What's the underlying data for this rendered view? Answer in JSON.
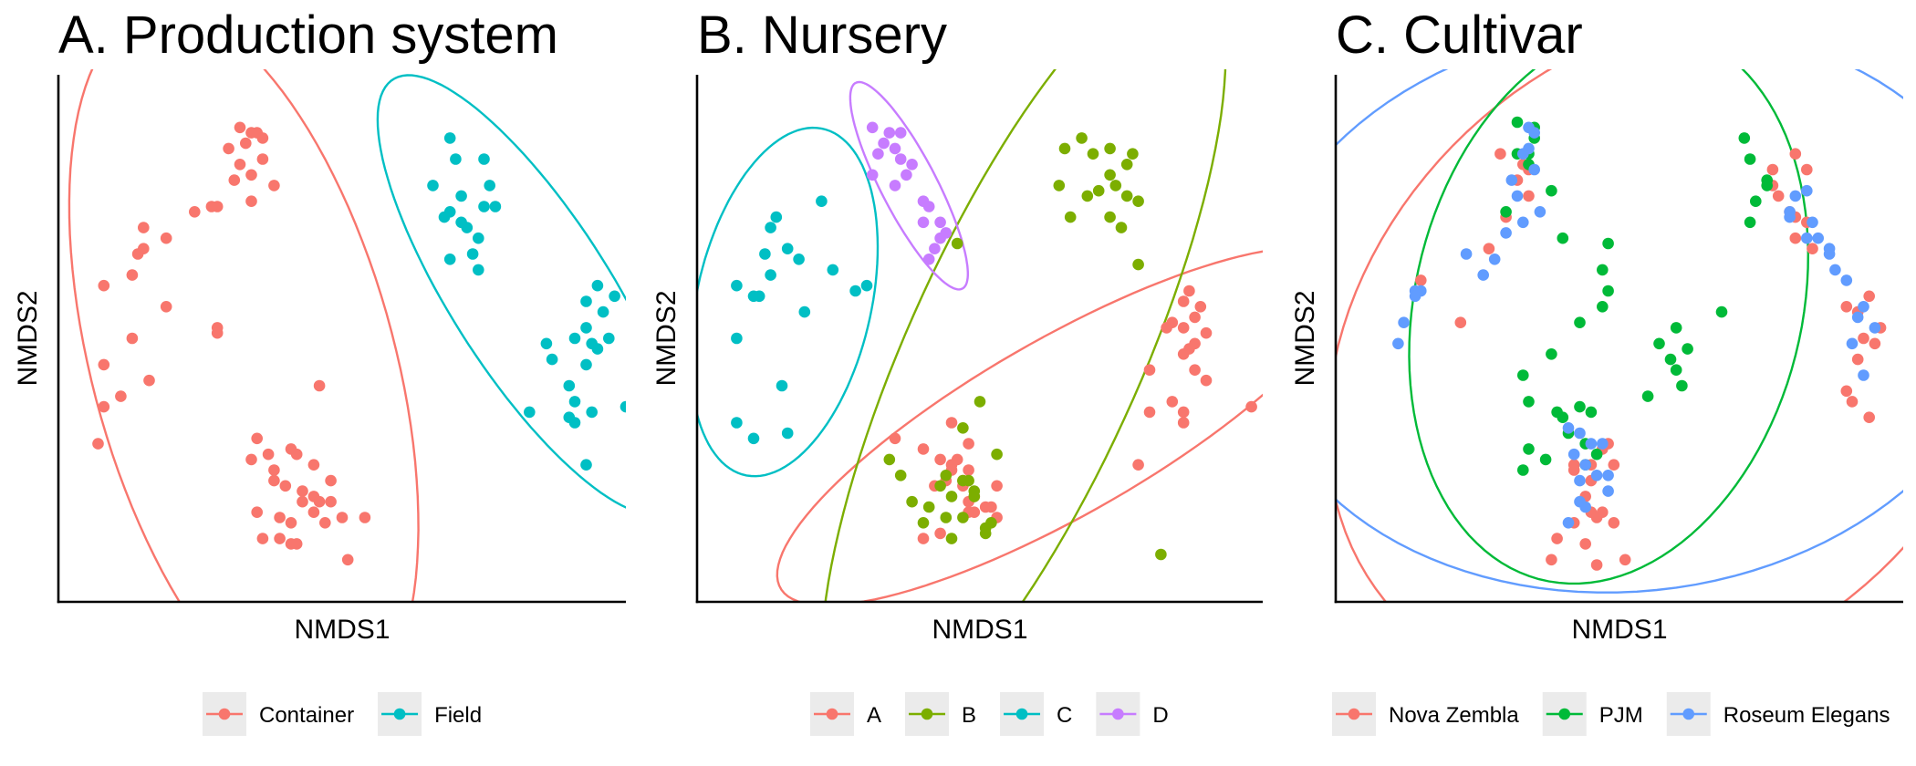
{
  "chart_data": [
    {
      "type": "scatter",
      "title": "A. Production system",
      "xlabel": "NMDS1",
      "ylabel": "NMDS2",
      "xlim": [
        0,
        10
      ],
      "ylim": [
        0,
        10
      ],
      "ellipses": true,
      "legend": "bottom",
      "series": [
        {
          "name": "Container",
          "color": "#F8766D",
          "x": [
            3.2,
            3.5,
            3.4,
            3.6,
            3.3,
            3.0,
            3.2,
            3.6,
            3.4,
            3.8,
            3.1,
            2.8,
            3.4,
            2.4,
            2.7,
            1.5,
            1.9,
            1.5,
            1.4,
            1.3,
            1.9,
            0.8,
            2.8,
            2.8,
            1.3,
            0.8,
            0.8,
            0.7,
            1.1,
            1.6,
            4.6,
            3.5,
            3.7,
            4.1,
            4.2,
            3.4,
            3.8,
            4.5,
            3.8,
            4.0,
            4.8,
            4.3,
            4.5,
            4.6,
            4.3,
            4.8,
            4.5,
            3.5,
            3.9,
            5.0,
            4.7,
            5.4,
            4.1,
            3.6,
            3.9,
            4.2,
            4.1,
            5.1
          ],
          "y": [
            9.0,
            8.9,
            8.9,
            8.8,
            8.7,
            8.6,
            8.3,
            8.4,
            8.1,
            7.9,
            8.0,
            7.5,
            7.6,
            7.4,
            7.5,
            7.1,
            6.9,
            6.7,
            6.6,
            6.2,
            5.6,
            6.0,
            5.2,
            5.1,
            5.0,
            4.5,
            3.7,
            3.0,
            3.9,
            4.2,
            4.1,
            3.1,
            2.8,
            2.9,
            2.8,
            2.7,
            2.5,
            2.6,
            2.3,
            2.2,
            2.3,
            2.1,
            2.0,
            1.9,
            1.9,
            1.9,
            1.7,
            1.7,
            1.6,
            1.6,
            1.5,
            1.6,
            1.5,
            1.2,
            1.2,
            1.1,
            1.1,
            0.8
          ]
        },
        {
          "name": "Field",
          "color": "#00BFC4",
          "x": [
            6.9,
            7.5,
            7.0,
            6.6,
            7.1,
            6.8,
            7.6,
            7.7,
            7.5,
            7.1,
            6.9,
            7.2,
            7.4,
            7.3,
            6.9,
            7.4,
            9.5,
            9.3,
            9.8,
            9.6,
            9.3,
            9.7,
            9.1,
            9.4,
            9.5,
            8.6,
            8.7,
            9.3,
            9.0,
            9.4,
            9.1,
            10.0,
            8.3,
            9.0,
            9.1,
            9.3
          ],
          "y": [
            8.8,
            8.4,
            8.4,
            7.9,
            7.7,
            7.3,
            7.9,
            7.5,
            7.5,
            7.2,
            7.4,
            7.1,
            6.9,
            6.6,
            6.5,
            6.3,
            6.0,
            5.7,
            5.8,
            5.5,
            5.2,
            5.0,
            5.0,
            4.9,
            4.8,
            4.9,
            4.6,
            4.5,
            4.1,
            3.6,
            3.8,
            3.7,
            3.6,
            3.5,
            3.4,
            2.6
          ]
        }
      ]
    },
    {
      "type": "scatter",
      "title": "B. Nursery",
      "xlabel": "NMDS1",
      "ylabel": "NMDS2",
      "xlim": [
        0,
        10
      ],
      "ylim": [
        0,
        10
      ],
      "ellipses": true,
      "legend": "bottom",
      "series": [
        {
          "name": "A",
          "color": "#F8766D",
          "x": [
            8.7,
            8.6,
            8.9,
            8.8,
            8.4,
            8.6,
            8.3,
            9.0,
            8.8,
            8.7,
            8.6,
            8.0,
            8.8,
            9.0,
            8.4,
            8.6,
            9.8,
            8.0,
            8.6,
            7.8,
            4.5,
            3.5,
            4.0,
            4.8,
            4.6,
            4.3,
            4.5,
            4.8,
            4.4,
            4.5,
            4.7,
            5.3,
            4.2,
            4.7,
            4.9,
            4.8,
            5.1,
            4.9,
            5.3,
            4.8,
            5.2,
            4.0,
            4.3
          ],
          "y": [
            5.9,
            5.7,
            5.6,
            5.4,
            5.3,
            5.2,
            5.2,
            5.1,
            4.9,
            4.8,
            4.7,
            4.4,
            4.4,
            4.2,
            3.8,
            3.6,
            3.7,
            3.6,
            3.4,
            2.6,
            3.4,
            3.1,
            2.9,
            3.0,
            2.7,
            2.7,
            2.6,
            2.5,
            2.3,
            2.5,
            2.3,
            2.2,
            2.2,
            2.2,
            2.0,
            1.9,
            1.8,
            1.7,
            1.6,
            1.7,
            1.8,
            1.2,
            1.3
          ]
        },
        {
          "name": "B",
          "color": "#7CAE00",
          "x": [
            6.8,
            7.3,
            7.7,
            6.5,
            7.0,
            7.6,
            7.3,
            6.4,
            7.4,
            7.6,
            7.8,
            6.9,
            7.1,
            6.6,
            7.3,
            7.5,
            7.8,
            4.6,
            5.0,
            4.7,
            5.3,
            3.4,
            4.4,
            4.7,
            4.3,
            3.6,
            4.8,
            4.9,
            4.9,
            4.5,
            3.8,
            4.1,
            4.4,
            4.7,
            5.2,
            5.1,
            5.1,
            4.0,
            4.5,
            8.2
          ],
          "y": [
            8.8,
            8.6,
            8.5,
            8.6,
            8.5,
            8.3,
            8.1,
            7.9,
            7.9,
            7.7,
            7.6,
            7.7,
            7.8,
            7.3,
            7.3,
            7.1,
            6.4,
            6.8,
            3.8,
            3.3,
            2.8,
            2.7,
            2.4,
            2.3,
            2.2,
            2.4,
            2.3,
            2.1,
            2.0,
            2.0,
            1.9,
            1.8,
            1.6,
            1.6,
            1.5,
            1.4,
            1.3,
            1.5,
            1.2,
            0.9
          ]
        },
        {
          "name": "C",
          "color": "#00BFC4",
          "x": [
            1.4,
            2.2,
            1.3,
            1.6,
            1.2,
            1.3,
            0.7,
            1.8,
            2.4,
            2.8,
            3.0,
            1.0,
            1.1,
            1.9,
            0.7,
            1.5,
            0.7,
            1.0,
            1.6
          ],
          "y": [
            7.3,
            7.6,
            7.1,
            6.7,
            6.6,
            6.2,
            6.0,
            6.5,
            6.3,
            5.9,
            6.0,
            5.8,
            5.8,
            5.5,
            5.0,
            4.1,
            3.4,
            3.1,
            3.2
          ]
        },
        {
          "name": "D",
          "color": "#C77CFF",
          "x": [
            3.1,
            3.4,
            3.6,
            3.3,
            3.5,
            3.2,
            3.6,
            3.8,
            3.1,
            3.7,
            3.5,
            4.0,
            4.1,
            4.0,
            4.3,
            4.4,
            4.3,
            4.2,
            4.1
          ],
          "y": [
            9.0,
            8.9,
            8.9,
            8.7,
            8.6,
            8.5,
            8.4,
            8.3,
            8.1,
            8.1,
            7.9,
            7.6,
            7.5,
            7.2,
            7.2,
            7.0,
            6.9,
            6.7,
            6.5
          ]
        }
      ]
    },
    {
      "type": "scatter",
      "title": "C. Cultivar",
      "xlabel": "NMDS1",
      "ylabel": "NMDS2",
      "xlim": [
        0,
        10
      ],
      "ylim": [
        0,
        10
      ],
      "ellipses": true,
      "legend": "bottom",
      "series": [
        {
          "name": "Nova Zembla",
          "color": "#F8766D",
          "x": [
            2.9,
            3.3,
            3.4,
            3.2,
            3.4,
            3.0,
            2.7,
            1.5,
            2.2,
            4.8,
            4.7,
            4.9,
            4.2,
            4.5,
            4.2,
            4.5,
            4.4,
            4.5,
            4.2,
            4.6,
            4.9,
            4.7,
            4.4,
            3.9,
            3.8,
            4.6,
            5.1,
            8.1,
            7.7,
            7.7,
            7.8,
            8.3,
            8.0,
            8.1,
            8.1,
            8.4,
            8.3,
            9.4,
            9.0,
            9.2,
            9.6,
            9.3,
            9.5,
            9.2,
            9.0,
            9.1,
            9.4
          ],
          "y": [
            8.5,
            8.3,
            8.2,
            8.0,
            7.7,
            7.3,
            6.7,
            6.1,
            5.3,
            3.0,
            2.9,
            2.6,
            2.6,
            2.6,
            2.5,
            2.3,
            2.0,
            1.7,
            1.5,
            1.6,
            1.5,
            1.7,
            1.1,
            1.2,
            0.8,
            0.7,
            0.8,
            8.5,
            8.2,
            7.9,
            7.7,
            8.2,
            7.4,
            7.3,
            6.9,
            6.7,
            7.2,
            5.8,
            5.6,
            5.5,
            5.2,
            5.0,
            4.9,
            4.6,
            4.0,
            3.8,
            3.5
          ]
        },
        {
          "name": "PJM",
          "color": "#00BA38",
          "x": [
            3.2,
            3.5,
            3.5,
            3.2,
            3.4,
            3.4,
            3.8,
            3.0,
            4.0,
            4.8,
            4.7,
            4.8,
            4.7,
            4.3,
            3.8,
            3.3,
            3.9,
            3.4,
            4.3,
            4.5,
            4.0,
            4.1,
            4.4,
            4.6,
            4.4,
            3.4,
            3.7,
            3.3,
            7.2,
            7.3,
            7.6,
            7.6,
            7.4,
            7.3,
            6.8,
            5.7,
            5.9,
            5.5,
            6.0,
            6.2,
            6.1,
            6.0
          ],
          "y": [
            9.1,
            9.0,
            8.8,
            8.5,
            8.5,
            8.3,
            7.8,
            7.4,
            6.9,
            6.8,
            6.3,
            5.9,
            5.6,
            5.3,
            4.7,
            4.3,
            3.6,
            3.8,
            3.7,
            3.6,
            3.5,
            3.2,
            3.0,
            2.8,
            2.6,
            2.9,
            2.7,
            2.5,
            8.8,
            8.4,
            8.0,
            7.9,
            7.6,
            7.2,
            5.5,
            4.9,
            4.6,
            3.9,
            5.2,
            4.8,
            4.1,
            4.4
          ]
        },
        {
          "name": "Roseum Elegans",
          "color": "#619CFF",
          "x": [
            3.4,
            3.5,
            3.4,
            3.3,
            3.5,
            3.1,
            3.2,
            3.6,
            3.3,
            3.0,
            2.3,
            2.8,
            2.6,
            1.5,
            1.4,
            1.4,
            1.2,
            1.1,
            4.1,
            4.3,
            4.5,
            4.2,
            4.7,
            4.4,
            4.3,
            4.6,
            4.8,
            4.8,
            4.3,
            4.4,
            4.1,
            8.1,
            8.3,
            8.0,
            8.0,
            8.4,
            8.5,
            8.3,
            8.7,
            8.7,
            8.8,
            9.0,
            9.3,
            9.2,
            9.5,
            9.1,
            9.3
          ],
          "y": [
            9.0,
            8.9,
            8.6,
            8.5,
            8.2,
            8.0,
            7.7,
            7.4,
            7.2,
            7.0,
            6.6,
            6.5,
            6.2,
            5.9,
            5.9,
            5.8,
            5.3,
            4.9,
            3.3,
            3.2,
            3.0,
            2.8,
            3.0,
            2.6,
            2.3,
            2.4,
            2.4,
            2.1,
            1.9,
            1.8,
            1.5,
            7.7,
            7.8,
            7.4,
            7.3,
            7.2,
            6.9,
            6.9,
            6.7,
            6.6,
            6.3,
            6.1,
            5.6,
            5.4,
            5.2,
            4.9,
            4.3
          ]
        }
      ]
    }
  ]
}
